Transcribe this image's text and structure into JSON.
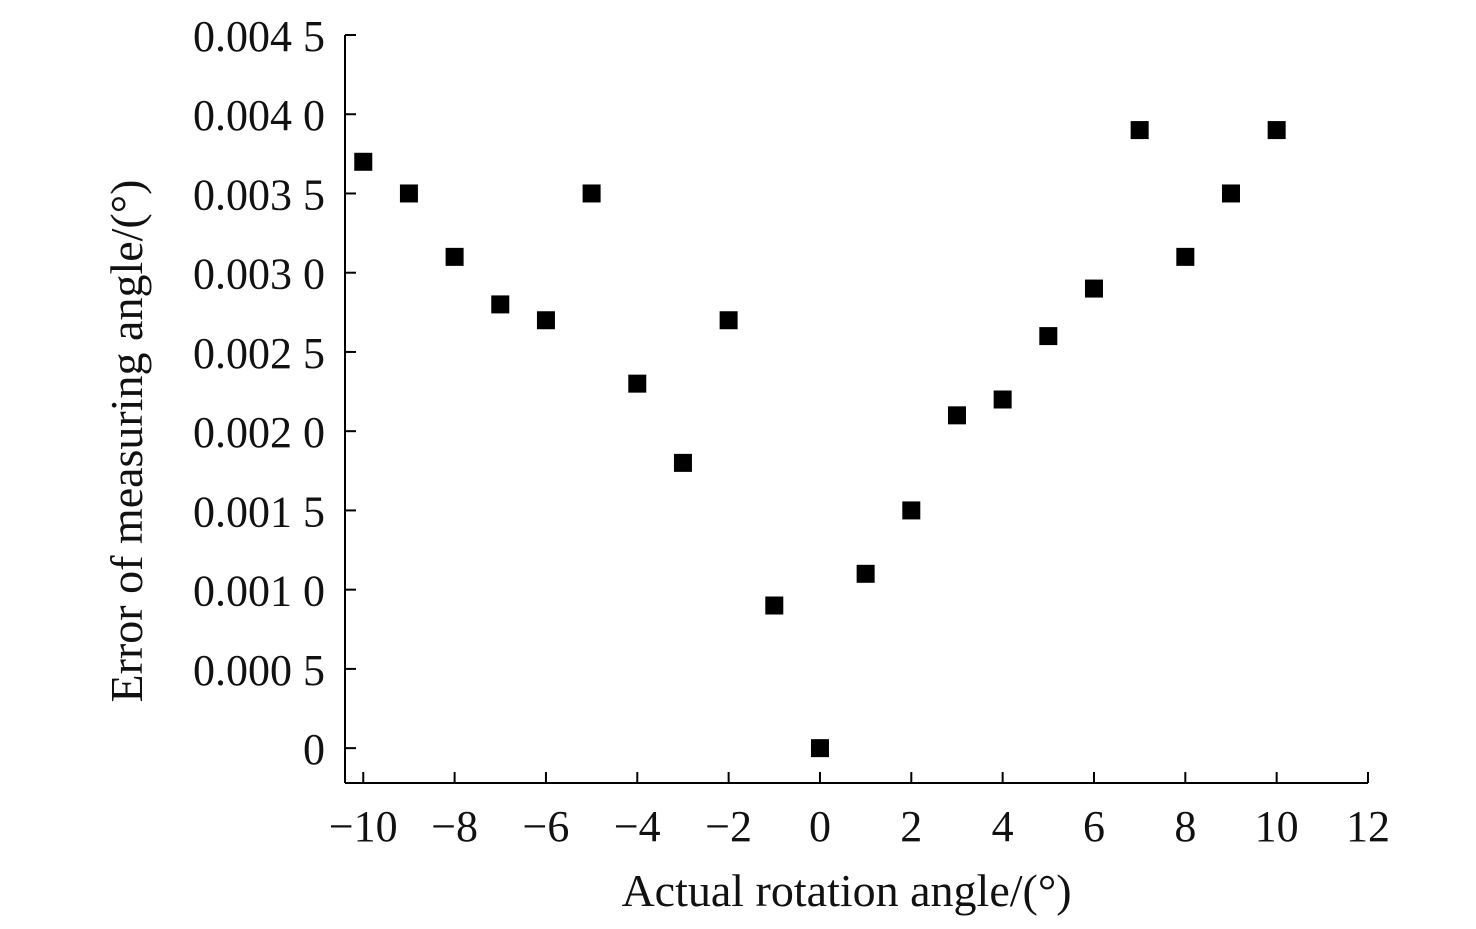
{
  "chart_data": {
    "type": "scatter",
    "title": "",
    "xlabel": "Actual rotation angle/(°)",
    "ylabel": "Error of measuring angle/(°)",
    "xlim": [
      -10.4,
      12
    ],
    "ylim": [
      -0.00022,
      0.0045
    ],
    "x_ticks": [
      {
        "value": -10,
        "label": "−10"
      },
      {
        "value": -8,
        "label": "−8"
      },
      {
        "value": -6,
        "label": "−6"
      },
      {
        "value": -4,
        "label": "−4"
      },
      {
        "value": -2,
        "label": "−2"
      },
      {
        "value": 0,
        "label": "0"
      },
      {
        "value": 2,
        "label": "2"
      },
      {
        "value": 4,
        "label": "4"
      },
      {
        "value": 6,
        "label": "6"
      },
      {
        "value": 8,
        "label": "8"
      },
      {
        "value": 10,
        "label": "10"
      },
      {
        "value": 12,
        "label": "12"
      }
    ],
    "y_ticks": [
      {
        "value": 0,
        "label": "0"
      },
      {
        "value": 0.0005,
        "label": "0.000 5"
      },
      {
        "value": 0.001,
        "label": "0.001 0"
      },
      {
        "value": 0.0015,
        "label": "0.001 5"
      },
      {
        "value": 0.002,
        "label": "0.002 0"
      },
      {
        "value": 0.0025,
        "label": "0.002 5"
      },
      {
        "value": 0.003,
        "label": "0.003 0"
      },
      {
        "value": 0.0035,
        "label": "0.003 5"
      },
      {
        "value": 0.004,
        "label": "0.004 0"
      },
      {
        "value": 0.0045,
        "label": "0.004 5"
      }
    ],
    "series": [
      {
        "marker": "square",
        "color": "#000000",
        "points": [
          {
            "x": -10,
            "y": 0.0037
          },
          {
            "x": -9,
            "y": 0.0035
          },
          {
            "x": -8,
            "y": 0.0031
          },
          {
            "x": -7,
            "y": 0.0028
          },
          {
            "x": -6,
            "y": 0.0027
          },
          {
            "x": -5,
            "y": 0.0035
          },
          {
            "x": -4,
            "y": 0.0023
          },
          {
            "x": -3,
            "y": 0.0018
          },
          {
            "x": -2,
            "y": 0.0027
          },
          {
            "x": -1,
            "y": 0.0009
          },
          {
            "x": 0,
            "y": 0.0
          },
          {
            "x": 1,
            "y": 0.0011
          },
          {
            "x": 2,
            "y": 0.0015
          },
          {
            "x": 3,
            "y": 0.0021
          },
          {
            "x": 4,
            "y": 0.0022
          },
          {
            "x": 5,
            "y": 0.0026
          },
          {
            "x": 6,
            "y": 0.0029
          },
          {
            "x": 7,
            "y": 0.0039
          },
          {
            "x": 8,
            "y": 0.0031
          },
          {
            "x": 9,
            "y": 0.0035
          },
          {
            "x": 10,
            "y": 0.0039
          }
        ]
      }
    ],
    "grid": false,
    "legend": "none"
  }
}
